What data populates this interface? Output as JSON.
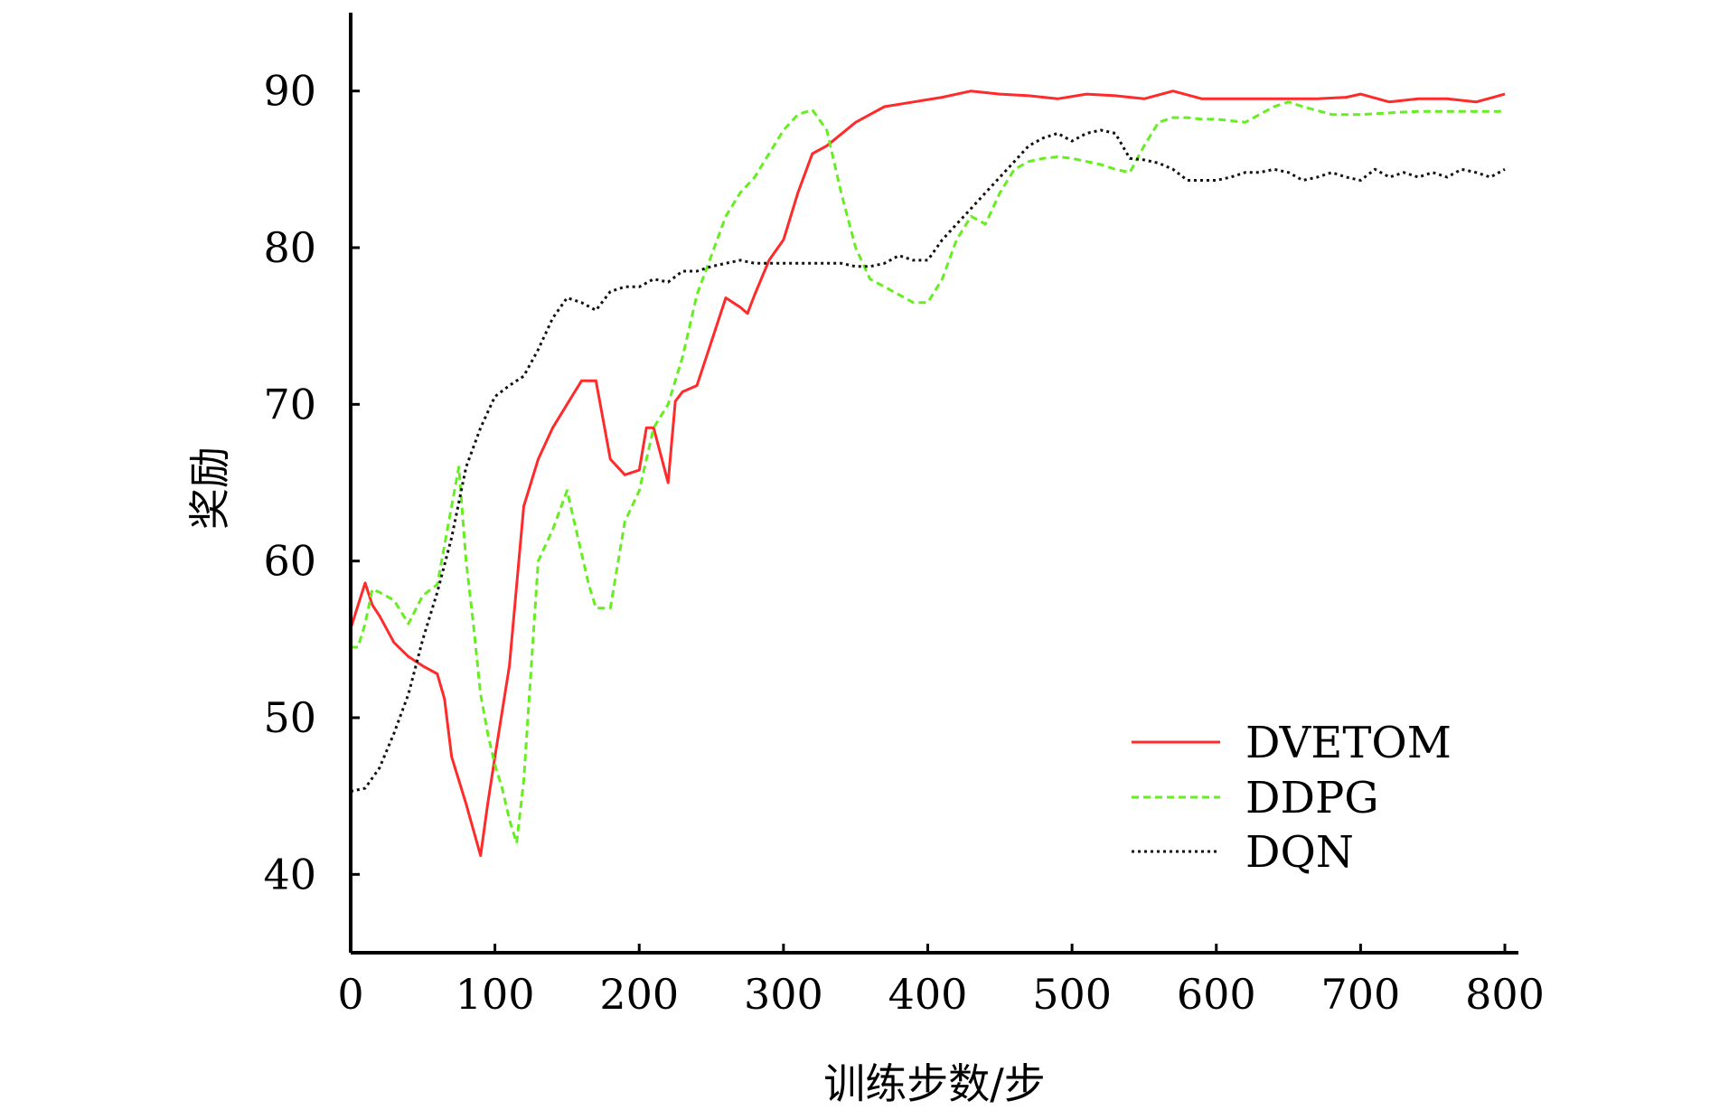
{
  "chart_data": {
    "type": "line",
    "xlabel": "训练步数/步",
    "ylabel": "奖励",
    "xlim": [
      0,
      800
    ],
    "ylim": [
      35,
      95
    ],
    "xticks": [
      0,
      100,
      200,
      300,
      400,
      500,
      600,
      700,
      800
    ],
    "yticks": [
      40,
      50,
      60,
      70,
      80,
      90
    ],
    "grid": false,
    "legend_position": "bottom-right",
    "series": [
      {
        "name": "DVETOM",
        "color": "#ff2a2a",
        "style": "solid",
        "x": [
          0,
          10,
          15,
          20,
          30,
          40,
          50,
          60,
          65,
          70,
          80,
          90,
          95,
          100,
          110,
          120,
          130,
          140,
          150,
          160,
          170,
          180,
          190,
          200,
          205,
          210,
          220,
          225,
          230,
          240,
          250,
          260,
          270,
          275,
          280,
          290,
          300,
          310,
          320,
          330,
          350,
          370,
          390,
          410,
          430,
          450,
          470,
          490,
          510,
          530,
          550,
          570,
          590,
          610,
          630,
          650,
          670,
          690,
          700,
          720,
          740,
          760,
          780,
          800
        ],
        "y": [
          55.7,
          58.6,
          57.2,
          56.5,
          54.8,
          53.9,
          53.3,
          52.8,
          51.2,
          47.5,
          44.5,
          41.2,
          44.5,
          47.5,
          53.3,
          63.5,
          66.5,
          68.5,
          70.0,
          71.5,
          71.5,
          66.5,
          65.5,
          65.8,
          68.5,
          68.5,
          65.0,
          70.2,
          70.8,
          71.2,
          74.0,
          76.8,
          76.2,
          75.8,
          77.0,
          79.2,
          80.5,
          83.5,
          86.0,
          86.5,
          88.0,
          89.0,
          89.3,
          89.6,
          90.0,
          89.8,
          89.7,
          89.5,
          89.8,
          89.7,
          89.5,
          90.0,
          89.5,
          89.5,
          89.5,
          89.5,
          89.5,
          89.6,
          89.8,
          89.3,
          89.5,
          89.5,
          89.3,
          89.8
        ]
      },
      {
        "name": "DDPG",
        "color": "#66ee22",
        "style": "dashed",
        "x": [
          0,
          5,
          10,
          15,
          20,
          30,
          40,
          50,
          60,
          65,
          70,
          75,
          80,
          85,
          90,
          95,
          100,
          105,
          110,
          115,
          120,
          130,
          140,
          150,
          160,
          165,
          170,
          180,
          190,
          200,
          210,
          220,
          230,
          240,
          250,
          260,
          270,
          280,
          290,
          300,
          310,
          320,
          330,
          340,
          350,
          360,
          370,
          380,
          390,
          400,
          410,
          420,
          430,
          440,
          450,
          460,
          470,
          480,
          490,
          500,
          510,
          520,
          530,
          540,
          550,
          560,
          570,
          580,
          590,
          600,
          620,
          640,
          650,
          660,
          680,
          700,
          720,
          740,
          760,
          780,
          800
        ],
        "y": [
          54.5,
          54.5,
          56.0,
          58.2,
          58.0,
          57.5,
          56.0,
          57.8,
          58.5,
          61.0,
          63.5,
          66.0,
          60.0,
          56.0,
          51.5,
          49.0,
          47.0,
          45.5,
          43.5,
          42.0,
          46.0,
          60.0,
          62.0,
          64.5,
          60.5,
          58.5,
          57.0,
          57.0,
          62.5,
          64.5,
          68.5,
          70.0,
          73.0,
          77.0,
          79.5,
          82.0,
          83.5,
          84.5,
          86.0,
          87.5,
          88.5,
          88.8,
          87.5,
          83.5,
          80.0,
          78.0,
          77.5,
          77.0,
          76.5,
          76.5,
          78.0,
          80.5,
          82.0,
          81.5,
          83.5,
          85.0,
          85.5,
          85.7,
          85.8,
          85.7,
          85.5,
          85.3,
          85.0,
          84.8,
          86.5,
          88.0,
          88.3,
          88.3,
          88.2,
          88.2,
          88.0,
          89.0,
          89.3,
          89.0,
          88.5,
          88.5,
          88.6,
          88.7,
          88.7,
          88.7,
          88.7
        ]
      },
      {
        "name": "DQN",
        "color": "#111111",
        "style": "dotted",
        "x": [
          0,
          10,
          20,
          30,
          40,
          50,
          60,
          70,
          80,
          90,
          100,
          110,
          120,
          130,
          140,
          150,
          160,
          170,
          180,
          190,
          200,
          210,
          220,
          230,
          240,
          250,
          260,
          270,
          280,
          290,
          300,
          310,
          320,
          330,
          340,
          350,
          360,
          370,
          380,
          390,
          400,
          410,
          420,
          430,
          440,
          450,
          460,
          470,
          480,
          490,
          500,
          510,
          520,
          530,
          540,
          550,
          560,
          570,
          580,
          590,
          600,
          610,
          620,
          630,
          640,
          650,
          660,
          670,
          680,
          690,
          700,
          710,
          720,
          730,
          740,
          750,
          760,
          770,
          780,
          790,
          800
        ],
        "y": [
          45.3,
          45.5,
          46.8,
          49.0,
          51.5,
          55.0,
          58.0,
          61.5,
          66.0,
          68.5,
          70.5,
          71.2,
          71.8,
          73.5,
          75.5,
          76.8,
          76.5,
          76.0,
          77.2,
          77.5,
          77.5,
          78.0,
          77.8,
          78.5,
          78.5,
          78.8,
          79.0,
          79.2,
          79.0,
          79.0,
          79.0,
          79.0,
          79.0,
          79.0,
          79.0,
          78.8,
          78.8,
          79.0,
          79.5,
          79.2,
          79.2,
          80.5,
          81.5,
          82.5,
          83.5,
          84.5,
          85.5,
          86.5,
          87.0,
          87.3,
          86.8,
          87.3,
          87.5,
          87.3,
          85.7,
          85.6,
          85.4,
          85.0,
          84.3,
          84.3,
          84.3,
          84.5,
          84.8,
          84.8,
          85.0,
          84.8,
          84.3,
          84.5,
          84.8,
          84.5,
          84.3,
          85.0,
          84.5,
          84.8,
          84.5,
          84.8,
          84.5,
          85.0,
          84.8,
          84.5,
          85.0
        ]
      }
    ]
  }
}
